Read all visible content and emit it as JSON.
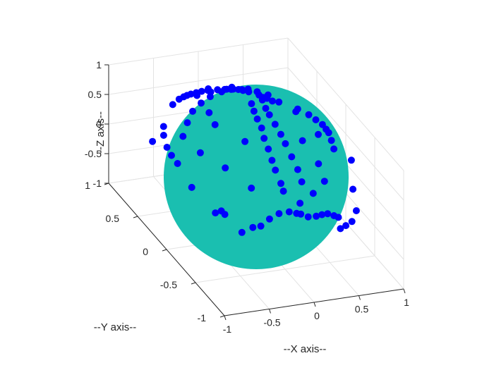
{
  "chart_data": {
    "type": "scatter",
    "title": "",
    "xlabel": "--X axis--",
    "ylabel": "--Y axis--",
    "zlabel": "--Z axis--",
    "xlim": [
      -1,
      1
    ],
    "ylim": [
      -1,
      1
    ],
    "zlim": [
      -1,
      1
    ],
    "x_ticks": [
      "-1",
      "-0.5",
      "0",
      "0.5",
      "1"
    ],
    "y_ticks": [
      "-1",
      "-0.5",
      "0",
      "0.5",
      "1"
    ],
    "z_ticks": [
      "-1",
      "-0.5",
      "0",
      "0.5",
      "1"
    ],
    "grid": true,
    "surface": {
      "shape": "unit-sphere",
      "radius": 1,
      "color": "#1abfb0"
    },
    "series": [
      {
        "marker_color": "#0000ff",
        "points": [
          [
            0.55,
            0.73,
            0.4
          ],
          [
            0.58,
            0.71,
            0.4
          ],
          [
            0.42,
            0.78,
            0.47
          ],
          [
            0.37,
            0.8,
            0.48
          ],
          [
            0.28,
            0.83,
            0.49
          ],
          [
            0.22,
            0.85,
            0.48
          ],
          [
            0.13,
            0.87,
            0.47
          ],
          [
            0.03,
            0.88,
            0.47
          ],
          [
            -0.04,
            0.88,
            0.47
          ],
          [
            -0.1,
            0.88,
            0.46
          ],
          [
            -0.16,
            0.88,
            0.45
          ],
          [
            -0.21,
            0.87,
            0.45
          ],
          [
            -0.26,
            0.85,
            0.46
          ],
          [
            -0.33,
            0.82,
            0.47
          ],
          [
            -0.44,
            0.76,
            0.47
          ],
          [
            0.62,
            0.68,
            0.38
          ],
          [
            0.66,
            0.63,
            0.41
          ],
          [
            0.76,
            0.46,
            0.46
          ],
          [
            0.8,
            0.33,
            0.5
          ],
          [
            0.82,
            0.24,
            0.51
          ],
          [
            0.83,
            0.14,
            0.54
          ],
          [
            0.8,
            0.03,
            0.59
          ],
          [
            0.77,
            -0.06,
            0.64
          ],
          [
            0.71,
            -0.2,
            0.68
          ],
          [
            0.66,
            -0.32,
            0.68
          ],
          [
            -0.89,
            -0.02,
            0.45
          ],
          [
            -0.88,
            0.1,
            0.45
          ],
          [
            -0.86,
            0.21,
            0.46
          ],
          [
            -0.8,
            0.36,
            0.48
          ],
          [
            -0.73,
            0.47,
            0.49
          ],
          [
            -0.84,
            0.49,
            0.24
          ],
          [
            -0.9,
            -0.28,
            0.34
          ],
          [
            -0.81,
            -0.55,
            0.19
          ],
          [
            -0.77,
            -0.59,
            0.26
          ],
          [
            -0.75,
            -0.62,
            0.23
          ],
          [
            -0.65,
            -0.76,
            0.06
          ],
          [
            -0.56,
            -0.81,
            0.18
          ],
          [
            -0.49,
            -0.84,
            0.22
          ],
          [
            -0.4,
            -0.85,
            0.33
          ],
          [
            -0.3,
            -0.86,
            0.41
          ],
          [
            -0.2,
            -0.88,
            0.44
          ],
          [
            -0.13,
            -0.9,
            0.42
          ],
          [
            -0.09,
            -0.91,
            0.41
          ],
          [
            -0.02,
            -0.93,
            0.37
          ],
          [
            0.07,
            -0.93,
            0.36
          ],
          [
            0.14,
            -0.92,
            0.36
          ],
          [
            0.21,
            -0.91,
            0.35
          ],
          [
            0.28,
            -0.91,
            0.3
          ],
          [
            0.33,
            -0.91,
            0.26
          ],
          [
            0.34,
            -0.93,
            0.09
          ],
          [
            0.42,
            -0.9,
            0.09
          ],
          [
            0.52,
            -0.85,
            0.08
          ],
          [
            0.62,
            -0.77,
            0.15
          ],
          [
            0.66,
            -0.65,
            0.37
          ],
          [
            0.92,
            -0.22,
            0.32
          ],
          [
            0.03,
            0.59,
            0.81
          ],
          [
            0.09,
            0.57,
            0.82
          ],
          [
            0.17,
            0.57,
            0.8
          ],
          [
            0.21,
            0.57,
            0.79
          ],
          [
            0.34,
            0.51,
            0.79
          ],
          [
            0.41,
            0.43,
            0.81
          ],
          [
            -0.03,
            0.55,
            0.83
          ],
          [
            -0.12,
            0.6,
            0.79
          ],
          [
            -0.26,
            0.62,
            0.74
          ],
          [
            0.31,
            0.62,
            0.72
          ],
          [
            0.09,
            0.22,
            0.97
          ],
          [
            0.04,
            0.1,
            0.99
          ],
          [
            0.0,
            -0.02,
            1.0
          ],
          [
            -0.03,
            -0.14,
            0.99
          ],
          [
            -0.08,
            -0.26,
            0.96
          ],
          [
            -0.11,
            -0.38,
            0.92
          ],
          [
            -0.14,
            -0.49,
            0.86
          ],
          [
            -0.16,
            -0.58,
            0.8
          ],
          [
            -0.17,
            -0.69,
            0.7
          ],
          [
            -0.18,
            -0.75,
            0.64
          ],
          [
            0.29,
            0.4,
            0.87
          ],
          [
            0.25,
            0.28,
            0.93
          ],
          [
            0.19,
            0.13,
            0.97
          ],
          [
            0.16,
            0.02,
            0.99
          ],
          [
            0.14,
            -0.11,
            0.98
          ],
          [
            0.12,
            -0.24,
            0.96
          ],
          [
            0.1,
            -0.35,
            0.93
          ],
          [
            0.08,
            -0.49,
            0.87
          ],
          [
            0.07,
            -0.61,
            0.79
          ],
          [
            0.05,
            -0.71,
            0.7
          ],
          [
            -0.19,
            0.5,
            0.84
          ],
          [
            -0.33,
            0.44,
            0.83
          ],
          [
            -0.47,
            0.37,
            0.8
          ],
          [
            -0.6,
            0.26,
            0.76
          ],
          [
            -0.72,
            0.15,
            0.68
          ],
          [
            -0.42,
            0.06,
            0.91
          ],
          [
            -0.37,
            0.24,
            0.9
          ],
          [
            -0.28,
            -0.24,
            0.93
          ],
          [
            0.31,
            -0.32,
            0.9
          ],
          [
            0.34,
            -0.55,
            0.76
          ],
          [
            0.31,
            -0.7,
            0.64
          ],
          [
            0.12,
            -0.8,
            0.59
          ],
          [
            -0.06,
            -0.85,
            0.52
          ],
          [
            -0.46,
            -0.63,
            0.62
          ],
          [
            -0.59,
            -0.38,
            0.71
          ],
          [
            0.57,
            -0.19,
            0.8
          ],
          [
            0.52,
            0.12,
            0.85
          ],
          [
            -0.7,
            -0.12,
            0.7
          ],
          [
            -0.05,
            0.75,
            0.66
          ],
          [
            0.18,
            0.7,
            0.69
          ]
        ]
      }
    ],
    "view": {
      "azimuth": -15,
      "elevation": 60
    }
  }
}
